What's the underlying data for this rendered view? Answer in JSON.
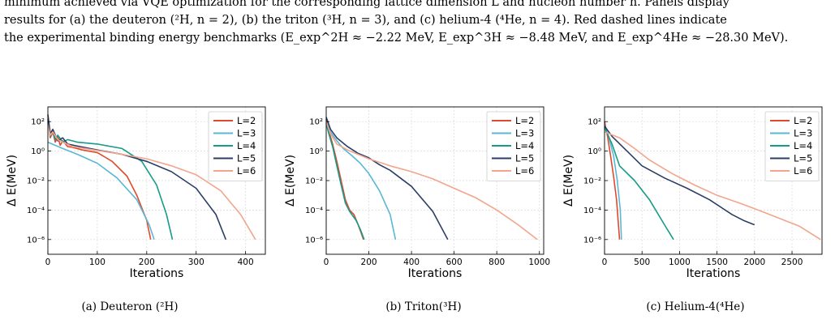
{
  "caption": {
    "line1": "minimum achieved via VQE optimization for the corresponding lattice dimension L and nucleon number n. Panels display",
    "line2": "results for (a) the deuteron (²H, n = 2), (b) the triton (³H, n = 3), and (c) helium-4 (⁴He, n = 4). Red dashed lines indicate",
    "line3": "the experimental binding energy benchmarks (E_exp^2H ≈ −2.22 MeV, E_exp^3H ≈ −8.48 MeV, and E_exp^4He ≈ −28.30 MeV)."
  },
  "chart_data": [
    {
      "type": "line",
      "subcaption": "(a) Deuteron (²H)",
      "xlabel": "Iterations",
      "ylabel": "Δ E(MeV)",
      "yscale": "log",
      "xlim": [
        0,
        440
      ],
      "ylim": [
        1e-07,
        1000
      ],
      "xticks": [
        0,
        100,
        200,
        300,
        400
      ],
      "yticks": [
        1e-06,
        0.0001,
        0.01,
        1,
        100
      ],
      "ytick_labels": [
        "10⁻⁶",
        "10⁻⁴",
        "10⁻²",
        "10⁰",
        "10²"
      ],
      "grid": true,
      "legend": "top-right",
      "series": [
        {
          "name": "L=2",
          "color": "#e04a2c",
          "points": [
            [
              0,
              150
            ],
            [
              5,
              8
            ],
            [
              10,
              20
            ],
            [
              15,
              4
            ],
            [
              20,
              10
            ],
            [
              25,
              2.5
            ],
            [
              30,
              5
            ],
            [
              40,
              2
            ],
            [
              50,
              1.8
            ],
            [
              70,
              1.2
            ],
            [
              100,
              0.8
            ],
            [
              130,
              0.2
            ],
            [
              160,
              0.02
            ],
            [
              180,
              0.001
            ],
            [
              200,
              2e-05
            ],
            [
              208,
              1e-06
            ]
          ]
        },
        {
          "name": "L=3",
          "color": "#5ab8d5",
          "points": [
            [
              0,
              4
            ],
            [
              30,
              1.5
            ],
            [
              60,
              0.6
            ],
            [
              100,
              0.15
            ],
            [
              140,
              0.015
            ],
            [
              180,
              0.0005
            ],
            [
              205,
              1e-05
            ],
            [
              215,
              1e-06
            ]
          ]
        },
        {
          "name": "L=4",
          "color": "#159b8a",
          "points": [
            [
              0,
              100
            ],
            [
              5,
              10
            ],
            [
              10,
              25
            ],
            [
              15,
              6
            ],
            [
              20,
              12
            ],
            [
              30,
              4
            ],
            [
              40,
              6
            ],
            [
              60,
              4
            ],
            [
              100,
              3
            ],
            [
              150,
              1.5
            ],
            [
              190,
              0.2
            ],
            [
              220,
              0.005
            ],
            [
              240,
              5e-05
            ],
            [
              252,
              1e-06
            ]
          ]
        },
        {
          "name": "L=5",
          "color": "#2d3e66",
          "points": [
            [
              0,
              300
            ],
            [
              5,
              15
            ],
            [
              10,
              30
            ],
            [
              20,
              5
            ],
            [
              30,
              8
            ],
            [
              40,
              3
            ],
            [
              60,
              2.2
            ],
            [
              100,
              1.2
            ],
            [
              150,
              0.6
            ],
            [
              200,
              0.2
            ],
            [
              250,
              0.04
            ],
            [
              300,
              0.003
            ],
            [
              340,
              5e-05
            ],
            [
              360,
              1e-06
            ]
          ]
        },
        {
          "name": "L=6",
          "color": "#f2a58c",
          "points": [
            [
              0,
              60
            ],
            [
              5,
              12
            ],
            [
              10,
              20
            ],
            [
              20,
              6
            ],
            [
              30,
              4
            ],
            [
              50,
              2
            ],
            [
              100,
              1.1
            ],
            [
              150,
              0.6
            ],
            [
              200,
              0.3
            ],
            [
              250,
              0.1
            ],
            [
              300,
              0.025
            ],
            [
              350,
              0.002
            ],
            [
              390,
              5e-05
            ],
            [
              420,
              1e-06
            ]
          ]
        }
      ]
    },
    {
      "type": "line",
      "subcaption": "(b) Triton(³H)",
      "xlabel": "Iterations",
      "ylabel": "Δ E(MeV)",
      "yscale": "log",
      "xlim": [
        0,
        1020
      ],
      "ylim": [
        1e-07,
        1000
      ],
      "xticks": [
        0,
        200,
        400,
        600,
        800,
        1000
      ],
      "yticks": [
        1e-06,
        0.0001,
        0.01,
        1,
        100
      ],
      "ytick_labels": [
        "10⁻⁶",
        "10⁻⁴",
        "10⁻²",
        "10⁰",
        "10²"
      ],
      "grid": true,
      "legend": "top-right",
      "series": [
        {
          "name": "L=2",
          "color": "#e04a2c",
          "points": [
            [
              0,
              150
            ],
            [
              10,
              30
            ],
            [
              30,
              3
            ],
            [
              50,
              0.2
            ],
            [
              70,
              0.01
            ],
            [
              90,
              0.0005
            ],
            [
              110,
              0.0001
            ],
            [
              130,
              5e-05
            ],
            [
              150,
              1e-05
            ],
            [
              175,
              1e-06
            ]
          ]
        },
        {
          "name": "L=3",
          "color": "#5ab8d5",
          "points": [
            [
              0,
              120
            ],
            [
              20,
              20
            ],
            [
              50,
              5
            ],
            [
              80,
              1.5
            ],
            [
              120,
              0.5
            ],
            [
              160,
              0.15
            ],
            [
              200,
              0.03
            ],
            [
              250,
              0.002
            ],
            [
              300,
              5e-05
            ],
            [
              325,
              1e-06
            ]
          ]
        },
        {
          "name": "L=4",
          "color": "#159b8a",
          "points": [
            [
              0,
              80
            ],
            [
              10,
              20
            ],
            [
              30,
              2
            ],
            [
              50,
              0.1
            ],
            [
              70,
              0.005
            ],
            [
              90,
              0.0003
            ],
            [
              110,
              8e-05
            ],
            [
              140,
              2e-05
            ],
            [
              160,
              5e-06
            ],
            [
              178,
              1e-06
            ]
          ]
        },
        {
          "name": "L=5",
          "color": "#2d3e66",
          "points": [
            [
              0,
              200
            ],
            [
              20,
              30
            ],
            [
              50,
              8
            ],
            [
              100,
              2
            ],
            [
              150,
              0.7
            ],
            [
              200,
              0.35
            ],
            [
              250,
              0.12
            ],
            [
              300,
              0.05
            ],
            [
              400,
              0.004
            ],
            [
              500,
              8e-05
            ],
            [
              570,
              1e-06
            ]
          ]
        },
        {
          "name": "L=6",
          "color": "#f2a58c",
          "points": [
            [
              0,
              100
            ],
            [
              20,
              15
            ],
            [
              50,
              3
            ],
            [
              100,
              1.2
            ],
            [
              150,
              0.6
            ],
            [
              200,
              0.3
            ],
            [
              300,
              0.1
            ],
            [
              400,
              0.04
            ],
            [
              500,
              0.013
            ],
            [
              600,
              0.003
            ],
            [
              700,
              0.0007
            ],
            [
              800,
              0.0001
            ],
            [
              900,
              1e-05
            ],
            [
              990,
              1e-06
            ]
          ]
        }
      ]
    },
    {
      "type": "line",
      "subcaption": "(c) Helium-4(⁴He)",
      "xlabel": "Iterations",
      "ylabel": "Δ E(MeV)",
      "yscale": "log",
      "xlim": [
        0,
        2900
      ],
      "ylim": [
        1e-07,
        1000
      ],
      "xticks": [
        0,
        500,
        1000,
        1500,
        2000,
        2500
      ],
      "yticks": [
        1e-06,
        0.0001,
        0.01,
        1,
        100
      ],
      "ytick_labels": [
        "10⁻⁶",
        "10⁻⁴",
        "10⁻²",
        "10⁰",
        "10²"
      ],
      "grid": true,
      "legend": "top-right",
      "series": [
        {
          "name": "L=2",
          "color": "#e04a2c",
          "points": [
            [
              0,
              100
            ],
            [
              40,
              10
            ],
            [
              80,
              0.5
            ],
            [
              120,
              0.02
            ],
            [
              160,
              0.0005
            ],
            [
              200,
              1e-06
            ]
          ]
        },
        {
          "name": "L=3",
          "color": "#5ab8d5",
          "points": [
            [
              0,
              60
            ],
            [
              60,
              8
            ],
            [
              120,
              0.5
            ],
            [
              170,
              0.01
            ],
            [
              210,
              0.0001
            ],
            [
              225,
              1e-06
            ]
          ]
        },
        {
          "name": "L=4",
          "color": "#159b8a",
          "points": [
            [
              0,
              40
            ],
            [
              100,
              3
            ],
            [
              200,
              0.1
            ],
            [
              400,
              0.01
            ],
            [
              600,
              0.0005
            ],
            [
              800,
              1e-05
            ],
            [
              920,
              1e-06
            ]
          ]
        },
        {
          "name": "L=5",
          "color": "#2d3e66",
          "points": [
            [
              0,
              50
            ],
            [
              100,
              10
            ],
            [
              300,
              1
            ],
            [
              500,
              0.1
            ],
            [
              800,
              0.015
            ],
            [
              1100,
              0.003
            ],
            [
              1400,
              0.0005
            ],
            [
              1700,
              5e-05
            ],
            [
              1850,
              2e-05
            ],
            [
              2000,
              1e-05
            ]
          ]
        },
        {
          "name": "L=6",
          "color": "#f2a58c",
          "points": [
            [
              0,
              20
            ],
            [
              200,
              8
            ],
            [
              400,
              1.5
            ],
            [
              600,
              0.25
            ],
            [
              900,
              0.03
            ],
            [
              1200,
              0.005
            ],
            [
              1500,
              0.001
            ],
            [
              1800,
              0.0003
            ],
            [
              2100,
              8e-05
            ],
            [
              2400,
              2e-05
            ],
            [
              2600,
              8e-06
            ],
            [
              2880,
              1e-06
            ]
          ]
        }
      ]
    }
  ]
}
